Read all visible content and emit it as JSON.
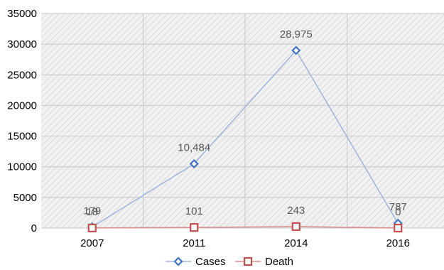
{
  "chart_data": {
    "type": "line",
    "categories": [
      "2007",
      "2011",
      "2014",
      "2016"
    ],
    "series": [
      {
        "name": "Cases",
        "values": [
          179,
          10484,
          28975,
          787
        ],
        "labels": [
          "179",
          "10,484",
          "28,975",
          "787"
        ],
        "color": "#4472c4",
        "line_color": "#9db5dc",
        "marker": "diamond"
      },
      {
        "name": "Death",
        "values": [
          18,
          101,
          243,
          0
        ],
        "labels": [
          "18",
          "101",
          "243",
          "0"
        ],
        "color": "#c0504d",
        "line_color": "#d88a88",
        "marker": "square"
      }
    ],
    "yticks": [
      "0",
      "5000",
      "10000",
      "15000",
      "20000",
      "25000",
      "30000",
      "35000"
    ],
    "ylim": [
      0,
      35000
    ],
    "legend": "bottom",
    "grid": true,
    "plot_background": "hatched-light-gray"
  }
}
